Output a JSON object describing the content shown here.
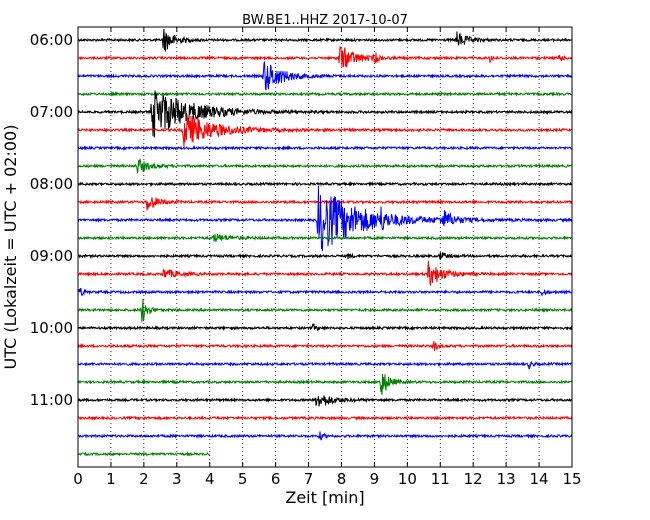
{
  "chart_data": {
    "type": "line",
    "title": "BW.BE1..HHZ 2017-10-07",
    "xlabel": "Zeit  [min]",
    "ylabel": "UTC (Lokalzeit = UTC + 02:00)",
    "xlim": [
      0,
      15
    ],
    "x_ticks": [
      "0",
      "1",
      "2",
      "3",
      "4",
      "5",
      "6",
      "7",
      "8",
      "9",
      "10",
      "11",
      "12",
      "13",
      "14",
      "15"
    ],
    "y_tick_labels": [
      "06:00",
      "07:00",
      "08:00",
      "09:00",
      "10:00",
      "11:00"
    ],
    "grid": true,
    "trace_interval_min": 15,
    "colors": [
      "#000000",
      "#ff0000",
      "#0000ff",
      "#008000"
    ],
    "series": [
      {
        "row": 0,
        "color": "#000000",
        "end": 15,
        "events": [
          {
            "t": 2.6,
            "amp": 13,
            "dur": 0.3
          },
          {
            "t": 11.5,
            "amp": 8,
            "dur": 0.3
          }
        ]
      },
      {
        "row": 1,
        "color": "#ff0000",
        "end": 15,
        "events": [
          {
            "t": 7.95,
            "amp": 14,
            "dur": 0.4
          },
          {
            "t": 9.0,
            "amp": 6,
            "dur": 0.1
          },
          {
            "t": 12.5,
            "amp": 4,
            "dur": 0.1
          },
          {
            "t": 14.6,
            "amp": 4,
            "dur": 0.1
          }
        ]
      },
      {
        "row": 2,
        "color": "#0000ff",
        "end": 15,
        "events": [
          {
            "t": 5.65,
            "amp": 17,
            "dur": 0.5
          }
        ]
      },
      {
        "row": 3,
        "color": "#008000",
        "end": 15,
        "events": []
      },
      {
        "row": 4,
        "color": "#000000",
        "end": 15,
        "events": [
          {
            "t": 2.25,
            "amp": 26,
            "dur": 1.1
          }
        ]
      },
      {
        "row": 5,
        "color": "#ff0000",
        "end": 15,
        "events": [
          {
            "t": 3.2,
            "amp": 18,
            "dur": 0.9
          }
        ]
      },
      {
        "row": 6,
        "color": "#0000ff",
        "end": 15,
        "events": []
      },
      {
        "row": 7,
        "color": "#008000",
        "end": 15,
        "events": [
          {
            "t": 1.8,
            "amp": 8,
            "dur": 0.3
          }
        ]
      },
      {
        "row": 8,
        "color": "#000000",
        "end": 15,
        "events": []
      },
      {
        "row": 9,
        "color": "#ff0000",
        "end": 15,
        "events": [
          {
            "t": 2.1,
            "amp": 9,
            "dur": 0.3
          }
        ]
      },
      {
        "row": 10,
        "color": "#0000ff",
        "end": 15,
        "events": [
          {
            "t": 7.3,
            "amp": 34,
            "dur": 1.2
          },
          {
            "t": 9.2,
            "amp": 7,
            "dur": 0.1
          },
          {
            "t": 11.05,
            "amp": 10,
            "dur": 0.3
          }
        ]
      },
      {
        "row": 11,
        "color": "#008000",
        "end": 15,
        "events": [
          {
            "t": 4.1,
            "amp": 4,
            "dur": 0.5
          }
        ]
      },
      {
        "row": 12,
        "color": "#000000",
        "end": 15,
        "events": [
          {
            "t": 8.2,
            "amp": 3,
            "dur": 0.1
          },
          {
            "t": 11.0,
            "amp": 4,
            "dur": 0.2
          }
        ]
      },
      {
        "row": 13,
        "color": "#ff0000",
        "end": 15,
        "events": [
          {
            "t": 2.6,
            "amp": 5,
            "dur": 0.4
          },
          {
            "t": 10.65,
            "amp": 13,
            "dur": 0.4
          }
        ]
      },
      {
        "row": 14,
        "color": "#0000ff",
        "end": 15,
        "events": [
          {
            "t": 0.05,
            "amp": 5,
            "dur": 0.1
          },
          {
            "t": 14.1,
            "amp": 4,
            "dur": 0.1
          }
        ]
      },
      {
        "row": 15,
        "color": "#008000",
        "end": 15,
        "events": [
          {
            "t": 1.95,
            "amp": 14,
            "dur": 0.15
          }
        ]
      },
      {
        "row": 16,
        "color": "#000000",
        "end": 15,
        "events": [
          {
            "t": 7.15,
            "amp": 4,
            "dur": 0.1
          }
        ]
      },
      {
        "row": 17,
        "color": "#ff0000",
        "end": 15,
        "events": [
          {
            "t": 10.8,
            "amp": 6,
            "dur": 0.1
          }
        ]
      },
      {
        "row": 18,
        "color": "#0000ff",
        "end": 15,
        "events": [
          {
            "t": 13.7,
            "amp": 4,
            "dur": 0.1
          }
        ]
      },
      {
        "row": 19,
        "color": "#008000",
        "end": 15,
        "events": [
          {
            "t": 9.2,
            "amp": 16,
            "dur": 0.2
          }
        ]
      },
      {
        "row": 20,
        "color": "#000000",
        "end": 15,
        "events": [
          {
            "t": 7.25,
            "amp": 9,
            "dur": 0.4
          }
        ]
      },
      {
        "row": 21,
        "color": "#ff0000",
        "end": 15,
        "events": []
      },
      {
        "row": 22,
        "color": "#0000ff",
        "end": 15,
        "events": [
          {
            "t": 7.35,
            "amp": 4,
            "dur": 0.1
          }
        ]
      },
      {
        "row": 23,
        "color": "#008000",
        "end": 4.0,
        "events": []
      }
    ]
  }
}
